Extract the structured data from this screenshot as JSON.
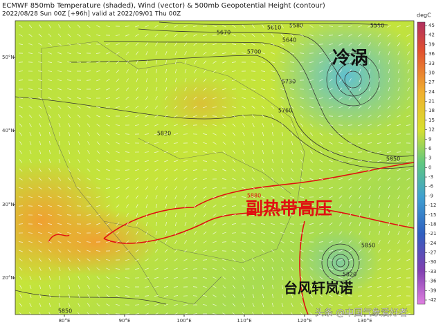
{
  "header": {
    "title": "ECMWF 850mb Temperature (shaded), Wind (vector) & 500mb Geopotential Height (contour)",
    "subtitle": "2022/08/28 Sun 00Z [+96h] valid at 2022/09/01 Thu 00Z"
  },
  "map": {
    "lat_labels": [
      "50°N",
      "40°N",
      "30°N",
      "20°N"
    ],
    "lon_labels": [
      "80°E",
      "90°E",
      "100°E",
      "110°E",
      "120°E",
      "130°E"
    ],
    "contour_labels": [
      "5550",
      "5580",
      "5610",
      "5640",
      "5670",
      "5700",
      "5730",
      "5760",
      "5820",
      "5850",
      "5880",
      "5850",
      "5820",
      "5850"
    ],
    "annotations": [
      "冷涡",
      "副热带高压",
      "台风轩岚诺"
    ],
    "watermark": "头条 @中国气象爱好者"
  },
  "colorbar": {
    "label": "degC",
    "ticks": [
      45,
      42,
      39,
      36,
      33,
      30,
      27,
      24,
      21,
      18,
      15,
      12,
      9,
      6,
      3,
      0,
      -3,
      -6,
      -9,
      -12,
      -15,
      -18,
      -21,
      -24,
      -27,
      -30,
      -33,
      -36,
      -39,
      -42
    ]
  }
}
